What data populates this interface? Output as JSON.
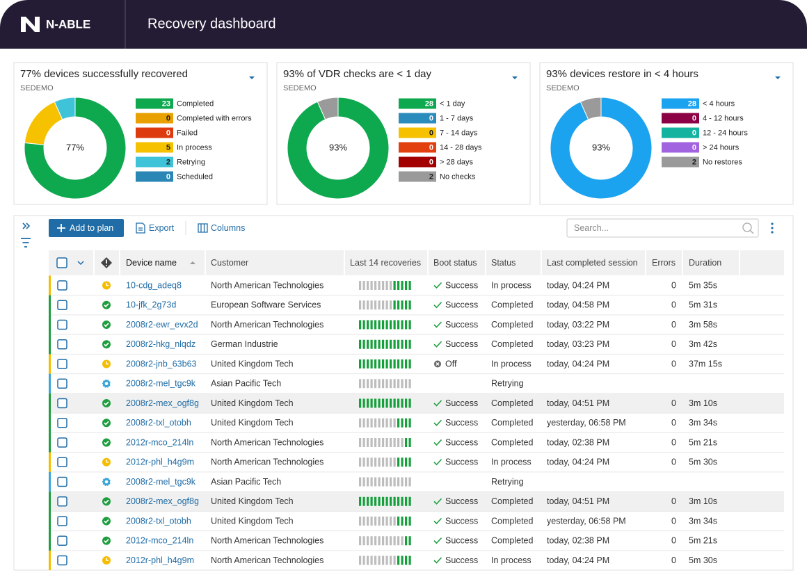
{
  "header": {
    "logo": "N-ABLE",
    "title": "Recovery dashboard"
  },
  "widgets": [
    {
      "title": "77% devices successfully recovered",
      "subtitle": "SEDEMO",
      "center": "77%",
      "chart_data": {
        "type": "donut",
        "categories": [
          "Completed",
          "Completed with errors",
          "Failed",
          "In process",
          "Retrying",
          "Scheduled"
        ],
        "values": [
          23,
          0,
          0,
          5,
          2,
          0
        ],
        "colors": [
          "#0ea84f",
          "#e8a100",
          "#de3a10",
          "#f6c200",
          "#3fc3d8",
          "#2a86b4"
        ]
      }
    },
    {
      "title": "93% of VDR checks are < 1 day",
      "subtitle": "SEDEMO",
      "center": "93%",
      "chart_data": {
        "type": "donut",
        "categories": [
          "< 1 day",
          "1 - 7 days",
          "7 - 14 days",
          "14 - 28 days",
          "> 28 days",
          "No checks"
        ],
        "values": [
          28,
          0,
          0,
          0,
          0,
          2
        ],
        "colors": [
          "#0ea84f",
          "#2a8bbd",
          "#f6c200",
          "#e3400f",
          "#a30000",
          "#9a9a9a"
        ]
      }
    },
    {
      "title": "93% devices restore in < 4 hours",
      "subtitle": "SEDEMO",
      "center": "93%",
      "chart_data": {
        "type": "donut",
        "categories": [
          "< 4 hours",
          "4 - 12 hours",
          "12 - 24 hours",
          "> 24 hours",
          "No restores"
        ],
        "values": [
          28,
          0,
          0,
          0,
          2
        ],
        "colors": [
          "#1ba3ef",
          "#8c0045",
          "#14b39f",
          "#a263e0",
          "#9a9a9a"
        ]
      }
    }
  ],
  "toolbar": {
    "add": "Add to plan",
    "export": "Export",
    "columns": "Columns",
    "search": "Search..."
  },
  "table": {
    "headers": [
      "Device name",
      "Customer",
      "Last 14 recoveries",
      "Boot status",
      "Status",
      "Last completed session",
      "Errors",
      "Duration"
    ],
    "rows": [
      {
        "device": "10-cdg_adeq8",
        "customer": "North American Technologies",
        "recent": 5,
        "icon": "clock",
        "color": "#f5bd00",
        "boot": "Success",
        "boot_icon": "check",
        "status": "In process",
        "session": "today, 04:24 PM",
        "errors": 0,
        "duration": "5m 35s"
      },
      {
        "device": "10-jfk_2g73d",
        "customer": "European Software Services",
        "recent": 5,
        "icon": "check",
        "color": "#1e9e3e",
        "boot": "Success",
        "boot_icon": "check",
        "status": "Completed",
        "session": "today, 04:58 PM",
        "errors": 0,
        "duration": "5m 31s"
      },
      {
        "device": "2008r2-ewr_evx2d",
        "customer": "North American Technologies",
        "recent": 14,
        "icon": "check",
        "color": "#1e9e3e",
        "boot": "Success",
        "boot_icon": "check",
        "status": "Completed",
        "session": "today, 03:22 PM",
        "errors": 0,
        "duration": "3m 58s"
      },
      {
        "device": "2008r2-hkg_nlqdz",
        "customer": "German Industrie",
        "recent": 14,
        "icon": "check",
        "color": "#1e9e3e",
        "boot": "Success",
        "boot_icon": "check",
        "status": "Completed",
        "session": "today, 03:23 PM",
        "errors": 0,
        "duration": "3m 42s"
      },
      {
        "device": "2008r2-jnb_63b63",
        "customer": "United Kingdom Tech",
        "recent": 14,
        "icon": "clock",
        "color": "#f5bd00",
        "boot": "Off",
        "boot_icon": "off",
        "status": "In process",
        "session": "today, 04:24 PM",
        "errors": 0,
        "duration": "37m 15s"
      },
      {
        "device": "2008r2-mel_tgc9k",
        "customer": "Asian Pacific Tech",
        "recent": 0,
        "icon": "gear",
        "color": "#3aa6d8",
        "boot": null,
        "boot_icon": null,
        "status": "Retrying",
        "session": null,
        "errors": null,
        "duration": null
      },
      {
        "device": "2008r2-mex_ogf8g",
        "customer": "United Kingdom Tech",
        "recent": 14,
        "icon": "check",
        "color": "#1e9e3e",
        "boot": "Success",
        "boot_icon": "check",
        "status": "Completed",
        "session": "today, 04:51 PM",
        "errors": 0,
        "duration": "3m 10s"
      },
      {
        "device": "2008r2-txl_otobh",
        "customer": "United Kingdom Tech",
        "recent": 4,
        "icon": "check",
        "color": "#1e9e3e",
        "boot": "Success",
        "boot_icon": "check",
        "status": "Completed",
        "session": "yesterday, 06:58 PM",
        "errors": 0,
        "duration": "3m 34s"
      },
      {
        "device": "2012r-mco_214ln",
        "customer": "North American Technologies",
        "recent": 2,
        "icon": "check",
        "color": "#1e9e3e",
        "boot": "Success",
        "boot_icon": "check",
        "status": "Completed",
        "session": "today, 02:38 PM",
        "errors": 0,
        "duration": "5m 21s"
      },
      {
        "device": "2012r-phl_h4g9m",
        "customer": "North American Technologies",
        "recent": 4,
        "icon": "clock",
        "color": "#f5bd00",
        "boot": "Success",
        "boot_icon": "check",
        "status": "In process",
        "session": "today, 04:24 PM",
        "errors": 0,
        "duration": "5m 30s"
      },
      {
        "device": "2008r2-mel_tgc9k",
        "customer": "Asian Pacific Tech",
        "recent": 0,
        "icon": "gear",
        "color": "#3aa6d8",
        "boot": null,
        "boot_icon": null,
        "status": "Retrying",
        "session": null,
        "errors": null,
        "duration": null
      },
      {
        "device": "2008r2-mex_ogf8g",
        "customer": "United Kingdom Tech",
        "recent": 14,
        "icon": "check",
        "color": "#1e9e3e",
        "boot": "Success",
        "boot_icon": "check",
        "status": "Completed",
        "session": "today, 04:51 PM",
        "errors": 0,
        "duration": "3m 10s"
      },
      {
        "device": "2008r2-txl_otobh",
        "customer": "United Kingdom Tech",
        "recent": 4,
        "icon": "check",
        "color": "#1e9e3e",
        "boot": "Success",
        "boot_icon": "check",
        "status": "Completed",
        "session": "yesterday, 06:58 PM",
        "errors": 0,
        "duration": "3m 34s"
      },
      {
        "device": "2012r-mco_214ln",
        "customer": "North American Technologies",
        "recent": 2,
        "icon": "check",
        "color": "#1e9e3e",
        "boot": "Success",
        "boot_icon": "check",
        "status": "Completed",
        "session": "today, 02:38 PM",
        "errors": 0,
        "duration": "5m 21s"
      },
      {
        "device": "2012r-phl_h4g9m",
        "customer": "North American Technologies",
        "recent": 4,
        "icon": "clock",
        "color": "#f5bd00",
        "boot": "Success",
        "boot_icon": "check",
        "status": "In process",
        "session": "today, 04:24 PM",
        "errors": 0,
        "duration": "5m 30s"
      }
    ]
  }
}
